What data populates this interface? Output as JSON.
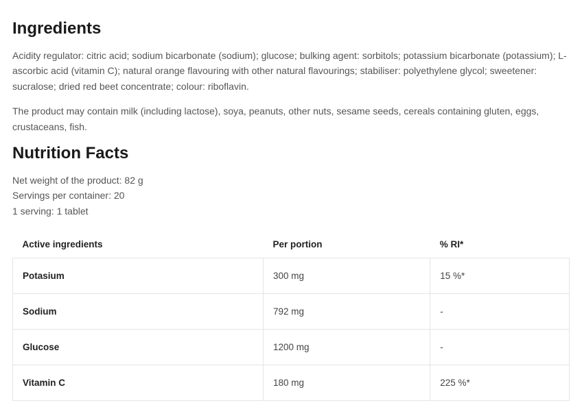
{
  "ingredients": {
    "heading": "Ingredients",
    "paragraph1": "Acidity regulator: citric acid; sodium bicarbonate (sodium); glucose; bulking agent: sorbitols; potassium bicarbonate (potassium); L-ascorbic acid (vitamin C); natural orange flavouring with other natural flavourings; stabiliser: polyethylene glycol; sweetener: sucralose; dried red beet concentrate; colour: riboflavin.",
    "paragraph2": "The product may contain milk (including lactose), soya, peanuts, other nuts, sesame seeds, cereals containing gluten, eggs, crustaceans, fish."
  },
  "nutrition": {
    "heading": "Nutrition Facts",
    "meta": {
      "net_weight": "Net weight of the product: 82 g",
      "servings": "Servings per container: 20",
      "serving_size": "1 serving: 1 tablet"
    },
    "columns": {
      "c1": "Active ingredients",
      "c2": "Per portion",
      "c3": "% RI*"
    },
    "rows": [
      {
        "name": "Potasium",
        "per_portion": "300 mg",
        "ri": "15 %*"
      },
      {
        "name": "Sodium",
        "per_portion": "792 mg",
        "ri": "-"
      },
      {
        "name": "Glucose",
        "per_portion": "1200 mg",
        "ri": "-"
      },
      {
        "name": "Vitamin C",
        "per_portion": "180 mg",
        "ri": "225 %*"
      }
    ]
  }
}
